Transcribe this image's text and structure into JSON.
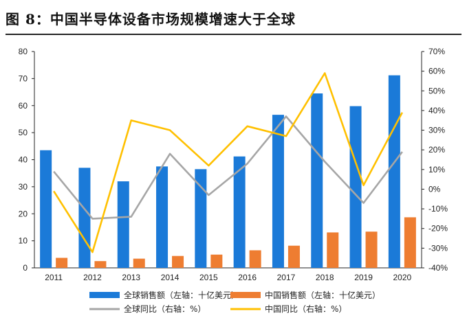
{
  "header": {
    "title": "图 8：中国半导体设备市场规模增速大于全球"
  },
  "colors": {
    "global_sales": "#1b7ad8",
    "china_sales": "#ee7d31",
    "global_yoy": "#a6a6a6",
    "china_yoy": "#ffc000",
    "axis": "#222222"
  },
  "chart_data": {
    "type": "bar",
    "categories": [
      "2011",
      "2012",
      "2013",
      "2014",
      "2015",
      "2016",
      "2017",
      "2018",
      "2019",
      "2020"
    ],
    "left_axis": {
      "ylim": [
        0,
        80
      ],
      "ticks": [
        "0",
        "10",
        "20",
        "30",
        "40",
        "50",
        "60",
        "70",
        "80"
      ]
    },
    "right_axis": {
      "ylim": [
        -0.4,
        0.7
      ],
      "ticks": [
        "-40%",
        "-30%",
        "-20%",
        "-10%",
        "0%",
        "10%",
        "20%",
        "30%",
        "40%",
        "50%",
        "60%",
        "70%"
      ]
    },
    "series": [
      {
        "name": "全球销售额（左轴：十亿美元）",
        "kind": "bar",
        "axis": "left",
        "values": [
          43.5,
          37.0,
          32.0,
          37.5,
          36.5,
          41.2,
          56.6,
          64.5,
          59.8,
          71.2
        ]
      },
      {
        "name": "中国销售额（左轴：十亿美元）",
        "kind": "bar",
        "axis": "left",
        "values": [
          3.7,
          2.5,
          3.4,
          4.4,
          4.9,
          6.5,
          8.2,
          13.1,
          13.4,
          18.7
        ]
      },
      {
        "name": "全球同比（右轴：%）",
        "kind": "line",
        "axis": "right",
        "values": [
          0.09,
          -0.15,
          -0.14,
          0.18,
          -0.03,
          0.13,
          0.37,
          0.14,
          -0.07,
          0.19
        ]
      },
      {
        "name": "中国同比（右轴：%）",
        "kind": "line",
        "axis": "right",
        "values": [
          -0.01,
          -0.32,
          0.35,
          0.3,
          0.12,
          0.32,
          0.27,
          0.59,
          0.02,
          0.39
        ]
      }
    ],
    "legend_position": "bottom",
    "grid": false
  }
}
